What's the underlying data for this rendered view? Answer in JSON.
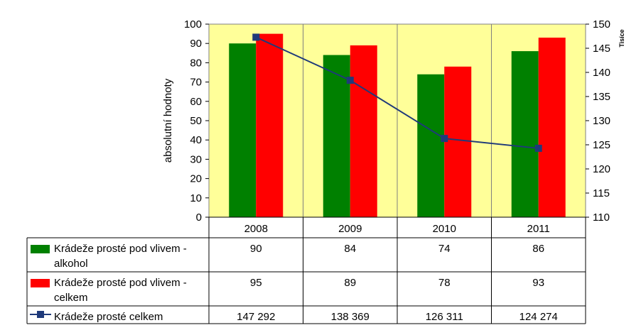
{
  "chart_data": {
    "type": "bar",
    "categories": [
      "2008",
      "2009",
      "2010",
      "2011"
    ],
    "ylabel": "absolutní hodnoty",
    "y2label": "Tisíce",
    "ylim": [
      0,
      100
    ],
    "yticks": [
      "0",
      "10",
      "20",
      "30",
      "40",
      "50",
      "60",
      "70",
      "80",
      "90",
      "100"
    ],
    "y2lim": [
      110,
      150
    ],
    "y2ticks": [
      "110",
      "115",
      "120",
      "125",
      "130",
      "135",
      "140",
      "145",
      "150"
    ],
    "grid": "vertical",
    "series": [
      {
        "name": "Krádeže prosté pod vlivem - alkohol",
        "name_lines": [
          "Krádeže prosté pod vlivem -",
          "alkohol"
        ],
        "type": "bar",
        "axis": "left",
        "color": "#008000",
        "values": [
          90,
          84,
          74,
          86
        ],
        "labels": [
          "90",
          "84",
          "74",
          "86"
        ]
      },
      {
        "name": "Krádeže prosté pod vlivem - celkem",
        "name_lines": [
          "Krádeže prosté pod vlivem -",
          "celkem"
        ],
        "type": "bar",
        "axis": "left",
        "color": "#ff0000",
        "values": [
          95,
          89,
          78,
          93
        ],
        "labels": [
          "95",
          "89",
          "78",
          "93"
        ]
      },
      {
        "name": "Krádeže prosté celkem",
        "name_lines": [
          "Krádeže prosté celkem"
        ],
        "type": "line",
        "axis": "right",
        "color": "#1f3a7a",
        "values": [
          147292,
          138369,
          126311,
          124274
        ],
        "labels": [
          "147 292",
          "138 369",
          "126 311",
          "124 274"
        ]
      }
    ],
    "plot_background": "#ffff99"
  }
}
